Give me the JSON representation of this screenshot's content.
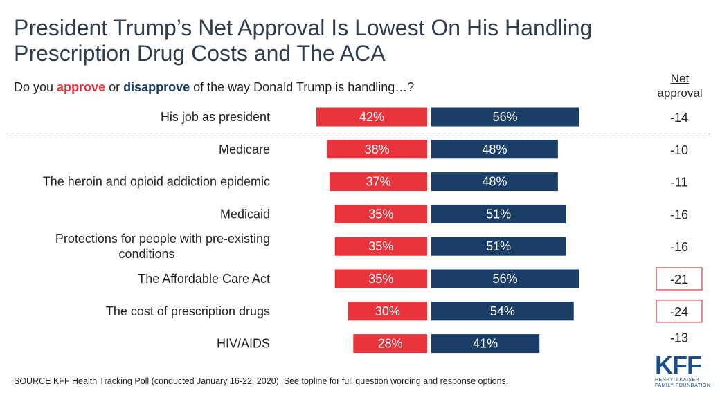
{
  "title_line1": "President Trump’s Net Approval Is Lowest On His Handling",
  "title_line2": "Prescription Drug Costs and The ACA",
  "subtitle": {
    "prefix": "Do you ",
    "approve": "approve",
    "middle": " or ",
    "disapprove": "disapprove",
    "suffix": " of the way Donald Trump is handling…?"
  },
  "net_header_line1": "Net",
  "net_header_line2": "approval",
  "source": "SOURCE KFF Health Tracking Poll (conducted January 16-22, 2020). See topline for full question wording and response options.",
  "logo": {
    "mark": "KFF",
    "line1": "HENRY J KAISER",
    "line2": "FAMILY FOUNDATION"
  },
  "colors": {
    "approve": "#e8353d",
    "disapprove": "#1b3e66",
    "highlight_box": "#e8353d",
    "separator": "#666666"
  },
  "chart_data": {
    "type": "bar",
    "orientation": "horizontal-diverging",
    "categories": [
      [
        "His job as president"
      ],
      [
        "Medicare"
      ],
      [
        "The heroin and opioid addiction epidemic"
      ],
      [
        "Medicaid"
      ],
      [
        "Protections for people with pre-existing",
        "conditions"
      ],
      [
        "The Affordable Care Act"
      ],
      [
        "The cost of prescription drugs"
      ],
      [
        "HIV/AIDS"
      ]
    ],
    "series": [
      {
        "name": "approve",
        "values": [
          42,
          38,
          37,
          35,
          35,
          35,
          30,
          28
        ],
        "labels": [
          "42%",
          "38%",
          "37%",
          "35%",
          "35%",
          "35%",
          "30%",
          "28%"
        ]
      },
      {
        "name": "disapprove",
        "values": [
          56,
          48,
          48,
          51,
          51,
          56,
          54,
          41
        ],
        "labels": [
          "56%",
          "48%",
          "48%",
          "51%",
          "51%",
          "56%",
          "54%",
          "41%"
        ]
      }
    ],
    "net_approval": [
      "-14",
      "-10",
      "-11",
      "-16",
      "-16",
      "-21",
      "-24",
      "-13"
    ],
    "highlighted": [
      false,
      false,
      false,
      false,
      false,
      true,
      true,
      false
    ],
    "separator_after_index": 0,
    "unit": "%"
  }
}
